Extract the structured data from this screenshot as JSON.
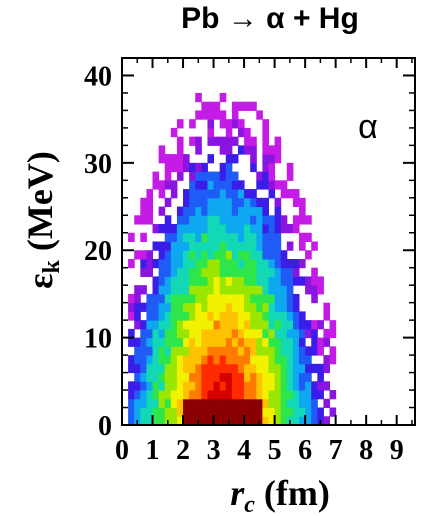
{
  "chart_data": {
    "type": "heatmap",
    "title": "Pb → α + Hg",
    "xlabel": "r_c (fm)",
    "xlabel_main": "r",
    "xlabel_sub": "c",
    "xlabel_unit": " (fm)",
    "ylabel": "ε_k (MeV)",
    "ylabel_main": "ε",
    "ylabel_sub": "k",
    "ylabel_unit": " (MeV)",
    "annotation": "α",
    "xlim": [
      0,
      9.6
    ],
    "ylim": [
      0,
      42
    ],
    "xticks": [
      "0",
      "1",
      "2",
      "3",
      "4",
      "5",
      "6",
      "7",
      "8",
      "9"
    ],
    "yticks": [
      "0",
      "10",
      "20",
      "30",
      "40"
    ],
    "colormap": [
      "#8b0000",
      "#d40000",
      "#ff2a00",
      "#ff7a00",
      "#ffc200",
      "#f2f200",
      "#9ae600",
      "#2ee64a",
      "#13d8b6",
      "#0ea8f0",
      "#1f5cf5",
      "#3a1de8",
      "#8a14e0",
      "#c41ce6"
    ],
    "distribution": {
      "x_center": 3.3,
      "x_halfwidth_at_0": 3.7,
      "shape": "semi-ellipse density falling with energy",
      "support_y_max": 38,
      "occupied_region": {
        "x_range_fm": [
          0.2,
          7.0
        ],
        "y_range_MeV": [
          0,
          38
        ]
      }
    }
  }
}
